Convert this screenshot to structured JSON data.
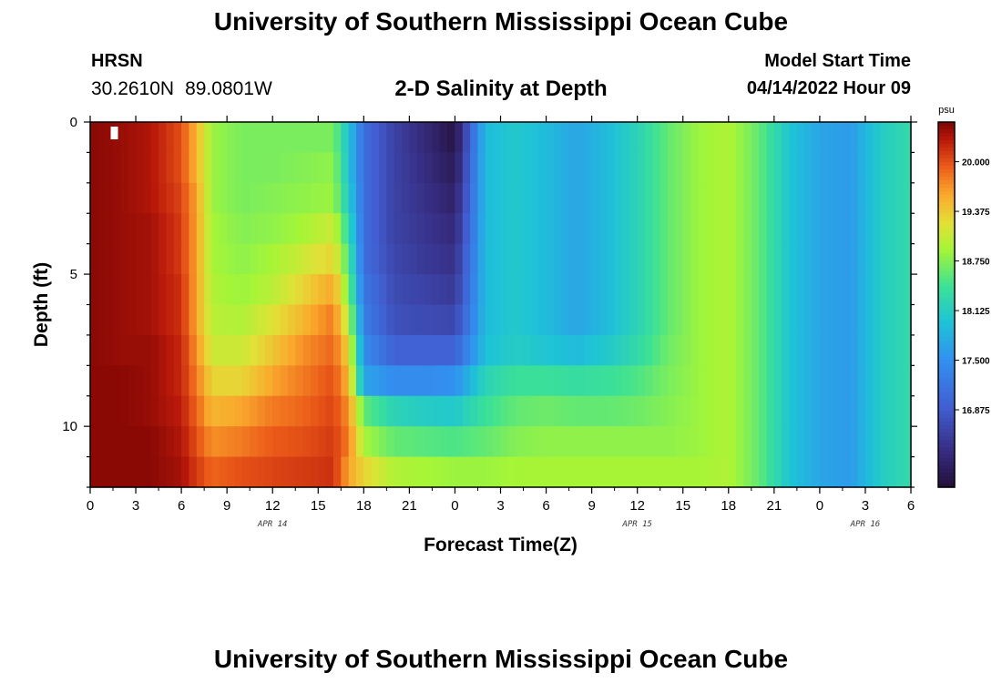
{
  "header": {
    "title": "University of Southern Mississippi Ocean Cube",
    "station": "HRSN",
    "latitude": "30.2610N",
    "longitude": "89.0801W",
    "chart_title": "2-D Salinity at Depth",
    "model_start_label": "Model Start Time",
    "model_start_value": "04/14/2022 Hour 09"
  },
  "footer": {
    "title": "University of Southern Mississippi Ocean Cube"
  },
  "chart_data": {
    "type": "heatmap",
    "title": "2-D Salinity at Depth",
    "xlabel": "Forecast Time(Z)",
    "ylabel": "Depth (ft)",
    "units": "psu",
    "x_start_hour": 0,
    "x_hours": 54,
    "x_tick_labels": [
      "0",
      "3",
      "6",
      "9",
      "12",
      "15",
      "18",
      "21",
      "0",
      "3",
      "6",
      "9",
      "12",
      "15",
      "18",
      "21",
      "0",
      "3",
      "6"
    ],
    "date_labels": [
      {
        "label": "APR 14",
        "hour": 12
      },
      {
        "label": "APR 15",
        "hour": 36
      },
      {
        "label": "APR 16",
        "hour": 51
      }
    ],
    "ylim": [
      0,
      12
    ],
    "y_tick_labels": [
      0,
      5,
      10
    ],
    "clim": [
      15.9,
      20.5
    ],
    "colorbar_ticks": [
      "20.000",
      "19.375",
      "18.750",
      "18.125",
      "17.500",
      "16.875"
    ],
    "colorbar_tick_values": [
      20.0,
      19.375,
      18.75,
      18.125,
      17.5,
      16.875
    ],
    "depth_levels": [
      0.5,
      1.5,
      2.5,
      3.5,
      4.5,
      5.5,
      6.5,
      7.5,
      8.5,
      9.5,
      10.5,
      11.5
    ],
    "time_hours": [
      0,
      2,
      4,
      6,
      7,
      8,
      10,
      12,
      14,
      16,
      17,
      18,
      20,
      22,
      24,
      26,
      28,
      30,
      32,
      34,
      36,
      38,
      40,
      42,
      44,
      46,
      48,
      50,
      52,
      54
    ],
    "salinity": [
      [
        20.45,
        20.4,
        20.3,
        20.0,
        19.5,
        18.85,
        18.7,
        18.7,
        18.7,
        18.7,
        18.0,
        17.1,
        16.6,
        16.3,
        16.0,
        17.9,
        18.05,
        17.9,
        17.7,
        17.9,
        18.2,
        18.6,
        18.85,
        18.95,
        18.6,
        18.0,
        17.7,
        17.6,
        18.1,
        18.3
      ],
      [
        20.45,
        20.4,
        20.3,
        20.0,
        19.5,
        18.85,
        18.7,
        18.7,
        18.75,
        18.8,
        18.0,
        17.1,
        16.6,
        16.35,
        16.1,
        17.9,
        18.05,
        17.9,
        17.7,
        17.9,
        18.2,
        18.6,
        18.85,
        18.95,
        18.6,
        18.0,
        17.7,
        17.6,
        18.1,
        18.3
      ],
      [
        20.45,
        20.4,
        20.3,
        20.05,
        19.6,
        18.85,
        18.7,
        18.75,
        18.8,
        18.85,
        18.1,
        17.1,
        16.6,
        16.4,
        16.2,
        17.9,
        18.05,
        17.9,
        17.7,
        17.9,
        18.2,
        18.6,
        18.85,
        18.95,
        18.6,
        18.0,
        17.7,
        17.6,
        18.1,
        18.3
      ],
      [
        20.45,
        20.4,
        20.35,
        20.1,
        19.6,
        18.9,
        18.75,
        18.8,
        18.9,
        19.1,
        18.3,
        17.1,
        16.6,
        16.45,
        16.3,
        17.9,
        18.05,
        17.9,
        17.7,
        17.9,
        18.2,
        18.6,
        18.85,
        18.95,
        18.6,
        18.0,
        17.7,
        17.6,
        18.1,
        18.3
      ],
      [
        20.45,
        20.4,
        20.35,
        20.1,
        19.6,
        18.9,
        18.8,
        18.9,
        19.1,
        19.3,
        18.5,
        17.1,
        16.65,
        16.5,
        16.4,
        17.9,
        18.05,
        17.9,
        17.7,
        17.9,
        18.2,
        18.6,
        18.85,
        18.95,
        18.6,
        18.0,
        17.7,
        17.6,
        18.1,
        18.3
      ],
      [
        20.45,
        20.4,
        20.35,
        20.15,
        19.6,
        18.95,
        18.85,
        19.0,
        19.3,
        19.6,
        18.7,
        17.2,
        16.7,
        16.6,
        16.5,
        17.9,
        18.05,
        17.9,
        17.7,
        17.9,
        18.2,
        18.6,
        18.85,
        18.95,
        18.6,
        18.0,
        17.7,
        17.6,
        18.1,
        18.3
      ],
      [
        20.45,
        20.4,
        20.35,
        20.15,
        19.6,
        19.0,
        18.95,
        19.2,
        19.5,
        19.8,
        19.0,
        17.3,
        16.75,
        16.7,
        16.65,
        17.9,
        18.05,
        17.9,
        17.7,
        17.9,
        18.2,
        18.6,
        18.85,
        18.95,
        18.6,
        18.0,
        17.7,
        17.6,
        18.1,
        18.3
      ],
      [
        20.45,
        20.4,
        20.4,
        20.2,
        19.7,
        19.1,
        19.1,
        19.4,
        19.7,
        19.9,
        19.3,
        17.45,
        16.95,
        16.95,
        16.95,
        17.95,
        18.1,
        18.0,
        17.9,
        18.05,
        18.3,
        18.65,
        18.85,
        18.95,
        18.6,
        18.0,
        17.7,
        17.6,
        18.1,
        18.3
      ],
      [
        20.45,
        20.45,
        20.4,
        20.2,
        19.8,
        19.3,
        19.3,
        19.6,
        19.8,
        20.0,
        19.5,
        17.7,
        17.45,
        17.45,
        17.5,
        18.2,
        18.4,
        18.4,
        18.35,
        18.4,
        18.5,
        18.7,
        18.85,
        18.95,
        18.6,
        18.0,
        17.7,
        17.6,
        18.1,
        18.3
      ],
      [
        20.45,
        20.45,
        20.4,
        20.25,
        19.9,
        19.5,
        19.6,
        19.8,
        19.9,
        20.05,
        19.7,
        18.6,
        18.2,
        18.1,
        18.05,
        18.4,
        18.6,
        18.65,
        18.6,
        18.6,
        18.65,
        18.75,
        18.85,
        18.95,
        18.6,
        18.0,
        17.7,
        17.6,
        18.1,
        18.3
      ],
      [
        20.45,
        20.45,
        20.45,
        20.3,
        20.0,
        19.7,
        19.8,
        19.95,
        20.0,
        20.1,
        19.8,
        18.9,
        18.6,
        18.55,
        18.5,
        18.6,
        18.75,
        18.8,
        18.8,
        18.8,
        18.8,
        18.8,
        18.85,
        18.95,
        18.6,
        18.0,
        17.7,
        17.6,
        18.1,
        18.3
      ],
      [
        20.45,
        20.45,
        20.45,
        20.35,
        20.1,
        19.9,
        20.0,
        20.05,
        20.1,
        20.15,
        19.6,
        19.3,
        18.95,
        18.9,
        18.85,
        18.85,
        18.9,
        18.9,
        18.9,
        18.9,
        18.9,
        18.9,
        18.9,
        18.95,
        18.6,
        18.0,
        17.7,
        17.6,
        18.1,
        18.3
      ]
    ],
    "annotations": [
      "white marker near surface at hour 1.5"
    ]
  }
}
